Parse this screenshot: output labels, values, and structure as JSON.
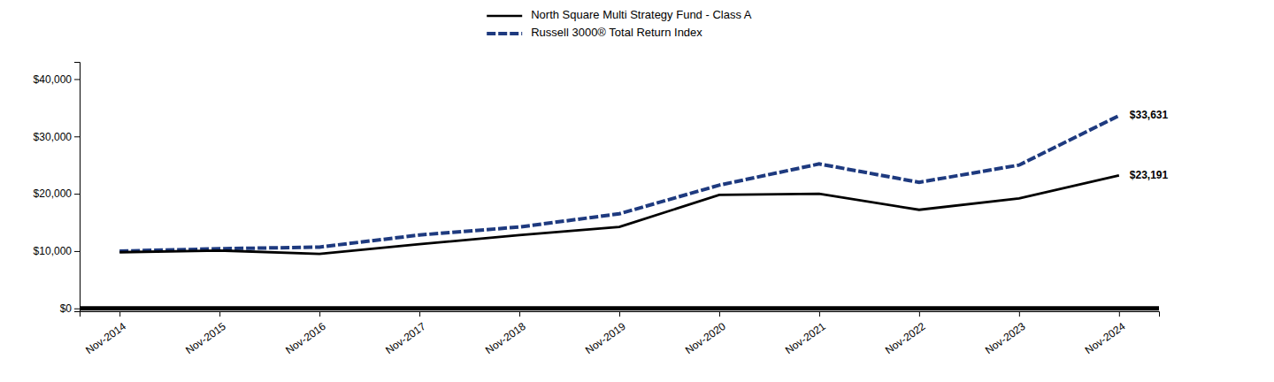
{
  "chart_data": {
    "type": "line",
    "categories": [
      "Nov-2014",
      "Nov-2015",
      "Nov-2016",
      "Nov-2017",
      "Nov-2018",
      "Nov-2019",
      "Nov-2020",
      "Nov-2021",
      "Nov-2022",
      "Nov-2023",
      "Nov-2024"
    ],
    "series": [
      {
        "name": "North Square Multi Strategy Fund - Class A",
        "color": "#000000",
        "line_style": "solid",
        "values": [
          9800,
          10100,
          9500,
          11200,
          12800,
          14200,
          19800,
          20000,
          17200,
          19200,
          23191
        ]
      },
      {
        "name": "Russell 3000® Total Return Index",
        "color": "#1e3a7f",
        "line_style": "dashed",
        "values": [
          10000,
          10400,
          10700,
          12800,
          14200,
          16500,
          21500,
          25200,
          22000,
          25000,
          33631
        ]
      }
    ],
    "annotations": [
      {
        "text": "$33,631",
        "x": "Nov-2024",
        "y": 33631
      },
      {
        "text": "$23,191",
        "x": "Nov-2024",
        "y": 23191
      }
    ],
    "ylim": [
      -500,
      43000
    ],
    "yticks": [
      {
        "value": 0,
        "label": "$0"
      },
      {
        "value": 10000,
        "label": "$10,000"
      },
      {
        "value": 20000,
        "label": "$20,000"
      },
      {
        "value": 30000,
        "label": "$30,000"
      },
      {
        "value": 40000,
        "label": "$40,000"
      }
    ],
    "grid": false,
    "legend": "top"
  }
}
